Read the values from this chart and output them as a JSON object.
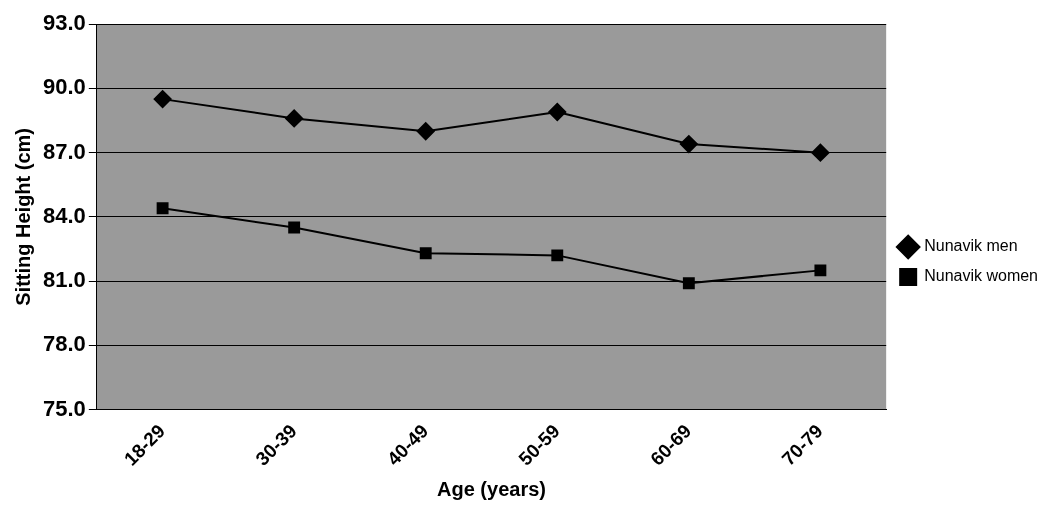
{
  "chart_data": {
    "type": "line",
    "xlabel": "Age (years)",
    "ylabel": "Sitting Height (cm)",
    "categories": [
      "18-29",
      "30-39",
      "40-49",
      "50-59",
      "60-69",
      "70-79"
    ],
    "series": [
      {
        "name": "Nunavik men",
        "color": "#000000",
        "marker": "diamond",
        "values": [
          89.5,
          88.6,
          88.0,
          88.9,
          87.4,
          87.0
        ]
      },
      {
        "name": "Nunavik women",
        "color": "#000000",
        "marker": "square",
        "values": [
          84.4,
          83.5,
          82.3,
          82.2,
          80.9,
          81.5
        ]
      }
    ],
    "ylim": [
      75,
      93
    ],
    "yticks": [
      {
        "value": 75,
        "label": "75.0"
      },
      {
        "value": 78,
        "label": "78.0"
      },
      {
        "value": 81,
        "label": "81.0"
      },
      {
        "value": 84,
        "label": "84.0"
      },
      {
        "value": 87,
        "label": "87.0"
      },
      {
        "value": 90,
        "label": "90.0"
      },
      {
        "value": 93,
        "label": "93.0"
      }
    ],
    "grid": "y",
    "legend": "right",
    "line_style": "solid"
  }
}
